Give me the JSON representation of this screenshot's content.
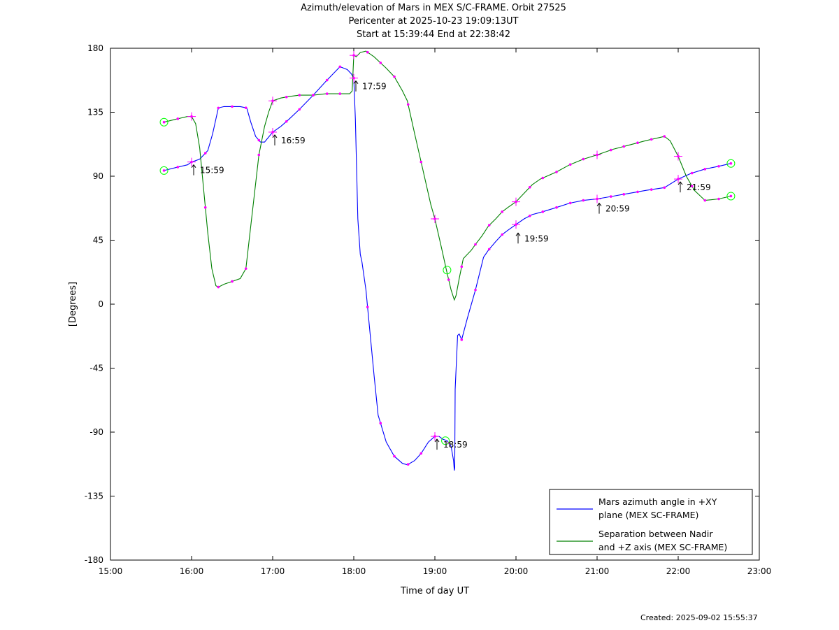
{
  "chart_data": {
    "type": "line",
    "title_lines": [
      "Azimuth/elevation of Mars in MEX S/C-FRAME.  Orbit 27525",
      "Pericenter at 2025-10-23 19:09:13UT",
      "Start at 15:39:44 End at 22:38:42"
    ],
    "xlabel": "Time of day UT",
    "ylabel": "[Degrees]",
    "xlim": [
      15.0,
      23.0
    ],
    "ylim": [
      -180,
      180
    ],
    "x_ticks": [
      15,
      16,
      17,
      18,
      19,
      20,
      21,
      22,
      23
    ],
    "x_tick_labels": [
      "15:00",
      "16:00",
      "17:00",
      "18:00",
      "19:00",
      "20:00",
      "21:00",
      "22:00",
      "23:00"
    ],
    "y_ticks": [
      180,
      135,
      90,
      45,
      0,
      -45,
      -90,
      -135,
      -180
    ],
    "y_tick_labels": [
      "180",
      "135",
      "90",
      "45",
      "0",
      "-45",
      "-90",
      "-135",
      "-180"
    ],
    "grid": false,
    "legend_position": "bottom-right",
    "series": [
      {
        "name": "Mars azimuth angle in +XY plane (MEX SC-FRAME)",
        "legend_lines": [
          "Mars azimuth angle in +XY",
          "plane (MEX SC-FRAME)"
        ],
        "color": "#0000ff",
        "x": [
          15.66,
          15.8,
          15.95,
          16.0,
          16.1,
          16.2,
          16.26,
          16.33,
          16.4,
          16.5,
          16.6,
          16.68,
          16.73,
          16.79,
          16.85,
          16.9,
          17.0,
          17.1,
          17.2,
          17.33,
          17.5,
          17.66,
          17.83,
          17.92,
          17.97,
          17.99,
          18.0,
          18.02,
          18.05,
          18.08,
          18.1,
          18.15,
          18.2,
          18.25,
          18.3,
          18.4,
          18.5,
          18.6,
          18.66,
          18.75,
          18.83,
          18.92,
          19.0,
          19.05,
          19.1,
          19.15,
          19.2,
          19.23,
          19.24,
          19.245,
          19.25,
          19.28,
          19.3,
          19.33,
          19.4,
          19.5,
          19.6,
          19.66,
          19.75,
          19.83,
          19.9,
          20.0,
          20.1,
          20.2,
          20.33,
          20.5,
          20.66,
          20.83,
          21.0,
          21.2,
          21.4,
          21.6,
          21.83,
          22.0,
          22.16,
          22.33,
          22.5,
          22.65
        ],
        "y": [
          94,
          96,
          98,
          100,
          102,
          108,
          120,
          138,
          139,
          139,
          139,
          138,
          128,
          118,
          114,
          114,
          121,
          125,
          130,
          137,
          147,
          157,
          167,
          165,
          162,
          160,
          159,
          130,
          60,
          35,
          30,
          10,
          -20,
          -50,
          -78,
          -97,
          -107,
          -112,
          -113,
          -110,
          -105,
          -97,
          -93,
          -93,
          -95,
          -96,
          -100,
          -110,
          -117,
          -115,
          -60,
          -22,
          -21,
          -25,
          -10,
          10,
          33,
          38,
          44,
          49,
          52,
          56,
          60,
          63,
          65,
          68,
          71,
          73,
          74,
          76,
          78,
          80,
          82,
          88,
          92,
          95,
          97,
          99
        ]
      },
      {
        "name": "Separation between Nadir and +Z axis (MEX SC-FRAME)",
        "legend_lines": [
          "Separation between Nadir",
          "and +Z axis (MEX SC-FRAME)"
        ],
        "color": "#008000",
        "x": [
          15.66,
          15.8,
          15.95,
          16.0,
          16.05,
          16.1,
          16.15,
          16.2,
          16.25,
          16.3,
          16.33,
          16.4,
          16.5,
          16.6,
          16.67,
          16.72,
          16.78,
          16.83,
          16.9,
          16.95,
          17.0,
          17.1,
          17.2,
          17.33,
          17.5,
          17.66,
          17.83,
          17.95,
          17.98,
          18.0,
          18.03,
          18.08,
          18.15,
          18.25,
          18.4,
          18.5,
          18.6,
          18.66,
          18.75,
          18.85,
          18.95,
          19.0,
          19.08,
          19.15,
          19.2,
          19.24,
          19.26,
          19.3,
          19.35,
          19.45,
          19.5,
          19.58,
          19.66,
          19.75,
          19.83,
          19.9,
          20.0,
          20.1,
          20.2,
          20.3,
          20.5,
          20.66,
          20.83,
          21.0,
          21.2,
          21.4,
          21.6,
          21.83,
          21.9,
          22.0,
          22.1,
          22.2,
          22.33,
          22.5,
          22.65
        ],
        "y": [
          128,
          130,
          132,
          132,
          127,
          110,
          80,
          50,
          25,
          13,
          12,
          14,
          16,
          18,
          25,
          50,
          80,
          105,
          125,
          135,
          143,
          145,
          146,
          147,
          147,
          148,
          148,
          148,
          150,
          175,
          174,
          177,
          178,
          174,
          166,
          160,
          150,
          143,
          120,
          95,
          70,
          60,
          40,
          22,
          10,
          3,
          6,
          18,
          32,
          38,
          42,
          48,
          55,
          60,
          65,
          68,
          72,
          78,
          84,
          88,
          93,
          98,
          102,
          105,
          109,
          112,
          115,
          118,
          115,
          104,
          90,
          80,
          73,
          74,
          76
        ]
      }
    ],
    "magenta_markers": {
      "color": "#ff00ff",
      "series_0_x": [
        15.66,
        15.83,
        16.0,
        16.17,
        16.33,
        16.5,
        16.67,
        16.83,
        17.0,
        17.17,
        17.33,
        17.5,
        17.67,
        17.83,
        18.0,
        18.17,
        18.33,
        18.5,
        18.67,
        18.83,
        19.0,
        19.17,
        19.33,
        19.5,
        19.67,
        19.83,
        20.0,
        20.17,
        20.33,
        20.5,
        20.67,
        20.83,
        21.0,
        21.17,
        21.33,
        21.5,
        21.67,
        21.83,
        22.0,
        22.17,
        22.33,
        22.5,
        22.65
      ],
      "series_1_x": [
        15.66,
        15.83,
        16.0,
        16.17,
        16.33,
        16.5,
        16.67,
        16.83,
        17.0,
        17.17,
        17.33,
        17.5,
        17.67,
        17.83,
        18.0,
        18.17,
        18.33,
        18.5,
        18.67,
        18.83,
        19.0,
        19.17,
        19.33,
        19.5,
        19.67,
        19.83,
        20.0,
        20.17,
        20.33,
        20.5,
        20.67,
        20.83,
        21.0,
        21.17,
        21.33,
        21.5,
        21.67,
        21.83,
        22.0,
        22.17,
        22.33,
        22.5,
        22.65
      ],
      "hour_crosses_x": [
        16.0,
        17.0,
        18.0,
        19.0,
        20.0,
        21.0,
        22.0
      ]
    },
    "circle_markers": {
      "color": "#00ff00",
      "points": [
        {
          "x": 15.66,
          "y": 94
        },
        {
          "x": 15.66,
          "y": 128
        },
        {
          "x": 19.15,
          "y": 24
        },
        {
          "x": 19.13,
          "y": -96
        },
        {
          "x": 22.65,
          "y": 99
        },
        {
          "x": 22.65,
          "y": 76
        }
      ]
    },
    "annotations": [
      {
        "text": "15:59",
        "x": 16.0,
        "y": 100
      },
      {
        "text": "16:59",
        "x": 17.0,
        "y": 121
      },
      {
        "text": "17:59",
        "x": 18.0,
        "y": 159
      },
      {
        "text": "18:59",
        "x": 19.0,
        "y": -93
      },
      {
        "text": "19:59",
        "x": 20.0,
        "y": 52
      },
      {
        "text": "20:59",
        "x": 21.0,
        "y": 73
      },
      {
        "text": "21:59",
        "x": 22.0,
        "y": 88
      }
    ]
  },
  "footer": {
    "created": "Created: 2025-09-02 15:55:37"
  }
}
